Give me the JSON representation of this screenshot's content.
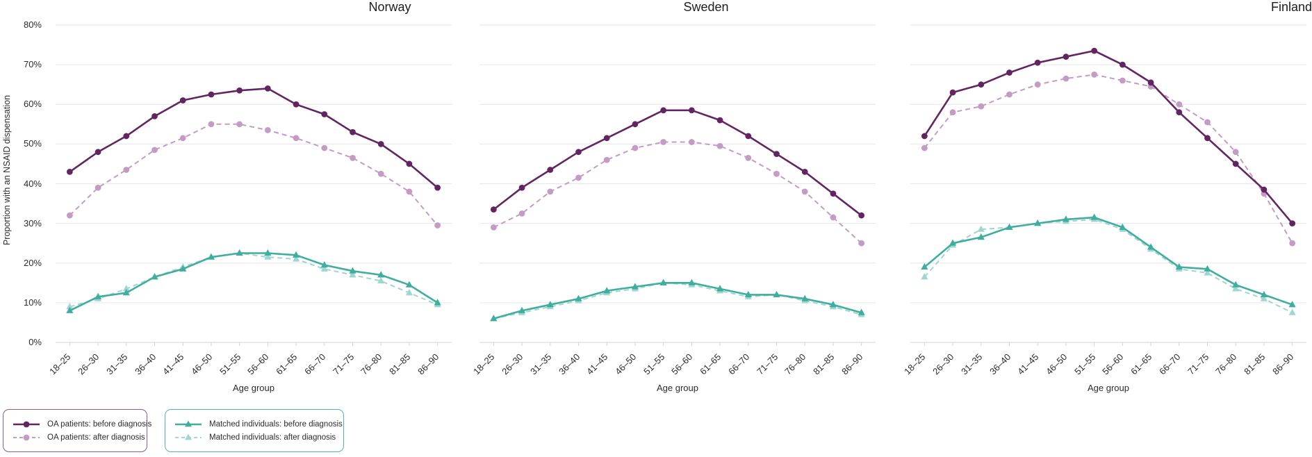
{
  "chart_data": {
    "type": "line",
    "categories": [
      "18–25",
      "26–30",
      "31–35",
      "36–40",
      "41–45",
      "46–50",
      "51–55",
      "56–60",
      "61–65",
      "66–70",
      "71–75",
      "76–80",
      "81–85",
      "86–90"
    ],
    "xlabel": "Age group",
    "ylabel": "Proportion with an NSAID dispensation",
    "ylim": [
      0,
      80
    ],
    "ytick_step": 10,
    "ytick_suffix": "%",
    "grid": "horizontal",
    "legend_position": "bottom-left",
    "colors": {
      "grid": "#e6e6e6",
      "axis": "#d4d4d4",
      "text": "#2b2b2b",
      "oa_before": "#632561",
      "oa_after": "#c39bc4",
      "matched_before": "#3fae9f",
      "matched_after": "#9ed7cf"
    },
    "panels": [
      {
        "title": "Norway",
        "series": [
          {
            "name": "OA patients: before diagnosis",
            "color": "#632561",
            "style": "solid",
            "marker": "circle",
            "values": [
              43,
              48,
              52,
              57,
              61,
              62.5,
              63.5,
              64,
              60,
              57.5,
              53,
              50,
              45,
              39
            ]
          },
          {
            "name": "OA patients: after diagnosis",
            "color": "#c39bc4",
            "style": "dashed",
            "marker": "circle",
            "values": [
              32,
              39,
              43.5,
              48.5,
              51.5,
              55,
              55,
              53.5,
              51.5,
              49,
              46.5,
              42.5,
              38,
              29.5
            ]
          },
          {
            "name": "Matched individuals: before diagnosis",
            "color": "#3fae9f",
            "style": "solid",
            "marker": "triangle",
            "values": [
              8,
              11.5,
              12.5,
              16.5,
              18.5,
              21.5,
              22.5,
              22.5,
              22,
              19.5,
              18,
              17,
              14.5,
              10
            ]
          },
          {
            "name": "Matched individuals: after diagnosis",
            "color": "#9ed7cf",
            "style": "dashed",
            "marker": "triangle",
            "values": [
              9,
              11,
              13.5,
              16.5,
              19,
              21.5,
              22.5,
              21.5,
              21,
              18.5,
              17,
              15.5,
              12.5,
              9.5
            ]
          }
        ]
      },
      {
        "title": "Sweden",
        "series": [
          {
            "name": "OA patients: before diagnosis",
            "color": "#632561",
            "style": "solid",
            "marker": "circle",
            "values": [
              33.5,
              39,
              43.5,
              48,
              51.5,
              55,
              58.5,
              58.5,
              56,
              52,
              47.5,
              43,
              37.5,
              32
            ]
          },
          {
            "name": "OA patients: after diagnosis",
            "color": "#c39bc4",
            "style": "dashed",
            "marker": "circle",
            "values": [
              29,
              32.5,
              38,
              41.5,
              46,
              49,
              50.5,
              50.5,
              49.5,
              46.5,
              42.5,
              38,
              31.5,
              25
            ]
          },
          {
            "name": "Matched individuals: before diagnosis",
            "color": "#3fae9f",
            "style": "solid",
            "marker": "triangle",
            "values": [
              6,
              8,
              9.5,
              11,
              13,
              14,
              15,
              15,
              13.5,
              12,
              12,
              11,
              9.5,
              7.5
            ]
          },
          {
            "name": "Matched individuals: after diagnosis",
            "color": "#9ed7cf",
            "style": "dashed",
            "marker": "triangle",
            "values": [
              6,
              7.5,
              9,
              10.5,
              12.5,
              13.5,
              15,
              14.5,
              13,
              11.5,
              12,
              10.5,
              9,
              7
            ]
          }
        ]
      },
      {
        "title": "Finland",
        "series": [
          {
            "name": "OA patients: before diagnosis",
            "color": "#632561",
            "style": "solid",
            "marker": "circle",
            "values": [
              52,
              63,
              65,
              68,
              70.5,
              72,
              73.5,
              70,
              65.5,
              58,
              51.5,
              45,
              38.5,
              30
            ]
          },
          {
            "name": "OA patients: after diagnosis",
            "color": "#c39bc4",
            "style": "dashed",
            "marker": "circle",
            "values": [
              49,
              58,
              59.5,
              62.5,
              65,
              66.5,
              67.5,
              66,
              64.5,
              60,
              55.5,
              48,
              37.5,
              25
            ]
          },
          {
            "name": "Matched individuals: before diagnosis",
            "color": "#3fae9f",
            "style": "solid",
            "marker": "triangle",
            "values": [
              19,
              25,
              26.5,
              29,
              30,
              31,
              31.5,
              29,
              24,
              19,
              18.5,
              14.5,
              12,
              9.5
            ]
          },
          {
            "name": "Matched individuals: after diagnosis",
            "color": "#9ed7cf",
            "style": "dashed",
            "marker": "triangle",
            "values": [
              16.5,
              24.5,
              28.5,
              29,
              30,
              30.5,
              31,
              28.5,
              23.5,
              18.5,
              17.5,
              13.5,
              11,
              7.5
            ]
          }
        ]
      }
    ],
    "legend": {
      "groups": [
        {
          "border_color": "#8f5b8d",
          "items": [
            {
              "label": "OA patients: before diagnosis",
              "color": "#632561",
              "style": "solid",
              "marker": "circle"
            },
            {
              "label": "OA patients: after diagnosis",
              "color": "#c39bc4",
              "style": "dashed",
              "marker": "circle"
            }
          ]
        },
        {
          "border_color": "#52b3a6",
          "items": [
            {
              "label": "Matched individuals: before diagnosis",
              "color": "#3fae9f",
              "style": "solid",
              "marker": "triangle"
            },
            {
              "label": "Matched individuals: after diagnosis",
              "color": "#9ed7cf",
              "style": "dashed",
              "marker": "triangle"
            }
          ]
        }
      ]
    }
  }
}
